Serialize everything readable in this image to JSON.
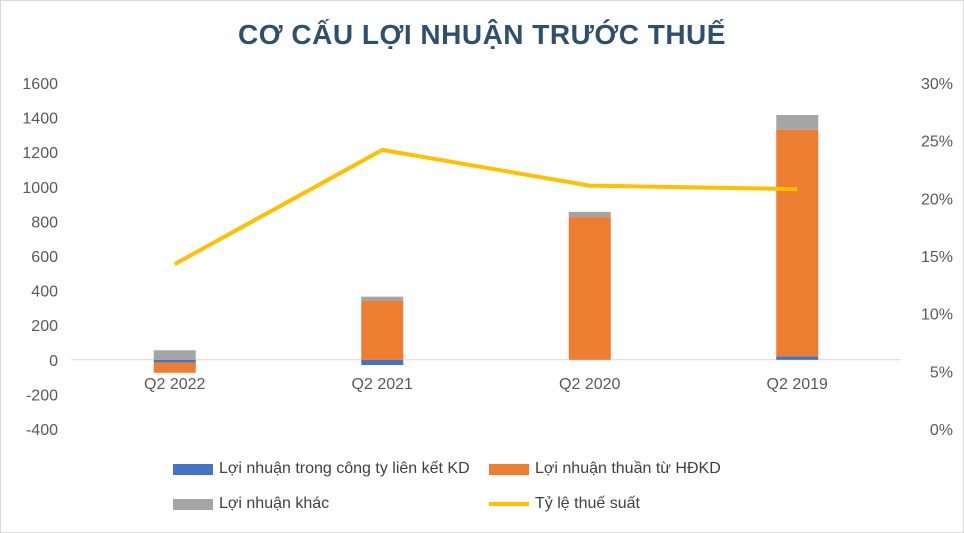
{
  "chart_data": {
    "type": "bar",
    "title": "CƠ CẤU LỢI NHUẬN TRƯỚC THUẾ",
    "stacked": true,
    "categories": [
      "Q2 2022",
      "Q2 2021",
      "Q2 2020",
      "Q2 2019"
    ],
    "series": [
      {
        "name": "Lợi nhuận trong công ty liên kết KD",
        "type": "bar",
        "axis": "left",
        "color": "#4472c4",
        "values": [
          -15,
          -30,
          0,
          20
        ]
      },
      {
        "name": "Lợi nhuận thuần từ HĐKD",
        "type": "bar",
        "axis": "left",
        "color": "#ed7d31",
        "values": [
          -60,
          340,
          825,
          1310
        ]
      },
      {
        "name": "Lợi nhuận khác",
        "type": "bar",
        "axis": "left",
        "color": "#a5a5a5",
        "values": [
          55,
          25,
          30,
          85
        ]
      },
      {
        "name": "Tỷ lệ thuế suất",
        "type": "line",
        "axis": "right",
        "color": "#ffc000",
        "values": [
          0.143,
          0.242,
          0.211,
          0.208
        ]
      }
    ],
    "y_left": {
      "min": -400,
      "max": 1600,
      "ticks": [
        "1600",
        "1400",
        "1200",
        "1000",
        "800",
        "600",
        "400",
        "200",
        "0",
        "-200",
        "-400"
      ]
    },
    "y_right": {
      "min": 0,
      "max": 0.3,
      "ticks": [
        "30%",
        "25%",
        "20%",
        "15%",
        "10%",
        "5%",
        "0%"
      ]
    },
    "legend_position": "bottom",
    "grid": false
  }
}
